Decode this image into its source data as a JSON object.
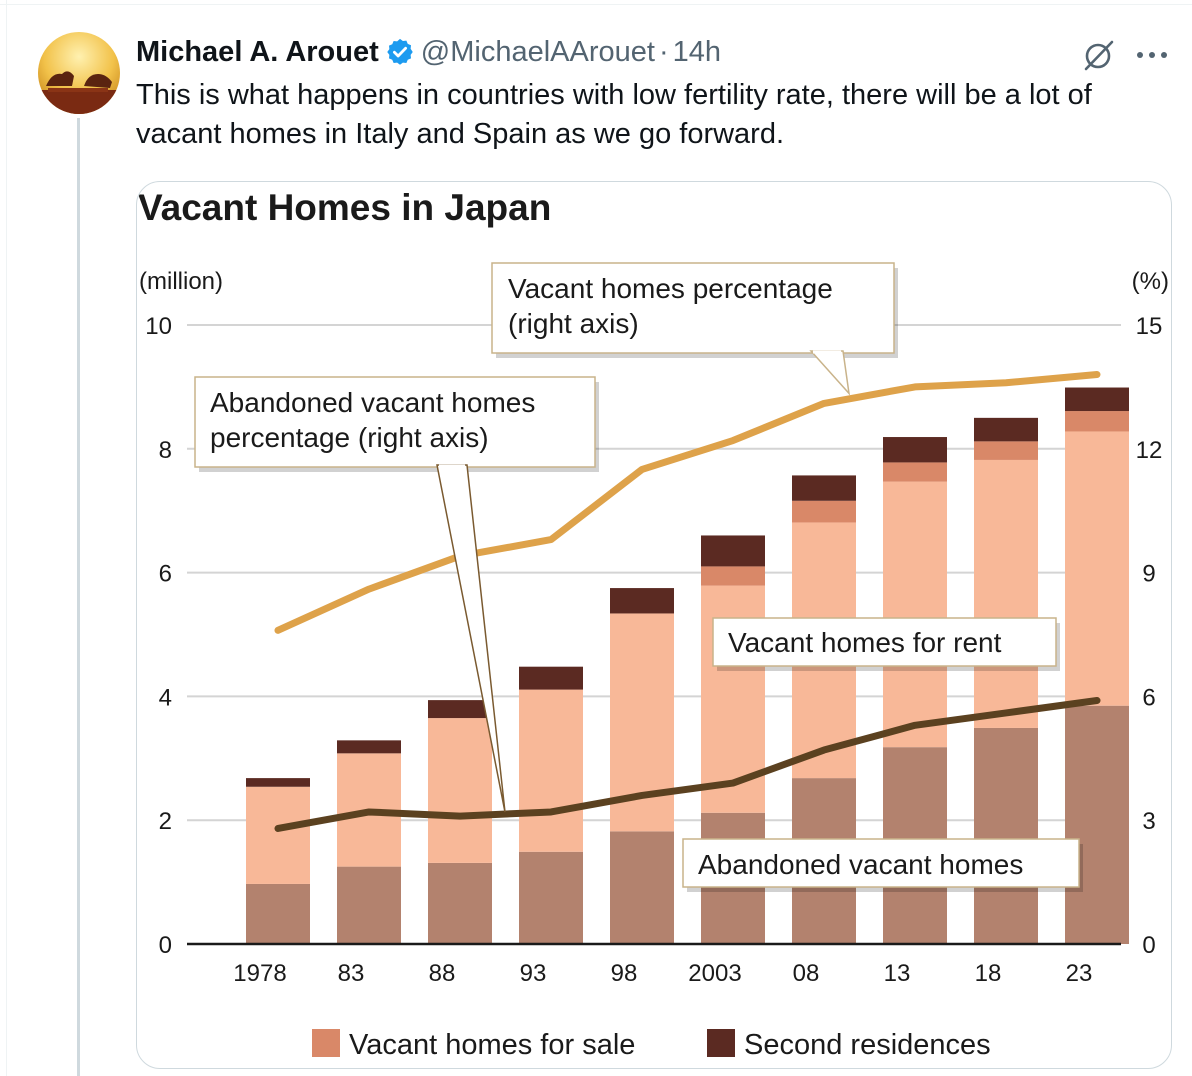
{
  "post": {
    "author_name": "Michael A. Arouet",
    "handle": "@MichaelAArouet",
    "separator": "·",
    "time": "14h",
    "text_lines": [
      "This is what happens in countries with low fertility rate, there will be a lot of",
      "vacant homes in Italy and Spain as we go forward."
    ],
    "icons": [
      "verified-badge-icon",
      "grok-icon",
      "more-icon"
    ]
  },
  "chart_data": {
    "type": "bar",
    "title": "Vacant Homes in Japan",
    "left_axis_label": "(million)",
    "right_axis_label": "(%)",
    "left_ylim": [
      0,
      10
    ],
    "right_ylim": [
      0,
      15
    ],
    "left_ticks": [
      "0",
      "2",
      "4",
      "6",
      "8",
      "10"
    ],
    "right_ticks": [
      "0",
      "3",
      "6",
      "9",
      "12",
      "15"
    ],
    "categories": [
      "1978",
      "83",
      "88",
      "93",
      "98",
      "2003",
      "08",
      "13",
      "18",
      "23"
    ],
    "stack_series": [
      {
        "key": "abandoned",
        "color": "#b3826e",
        "values": [
          0.97,
          1.25,
          1.31,
          1.49,
          1.82,
          2.12,
          2.68,
          3.18,
          3.49,
          3.85
        ]
      },
      {
        "key": "rent",
        "color": "#f8b898",
        "values": [
          1.57,
          1.83,
          2.34,
          2.62,
          3.52,
          3.67,
          4.13,
          4.29,
          4.33,
          4.43
        ]
      },
      {
        "key": "sale",
        "color": "#d98868",
        "values": [
          0,
          0,
          0,
          0,
          0,
          0.31,
          0.35,
          0.31,
          0.3,
          0.33
        ]
      },
      {
        "key": "second",
        "color": "#5b2a22",
        "values": [
          0.14,
          0.21,
          0.29,
          0.37,
          0.41,
          0.5,
          0.41,
          0.41,
          0.38,
          0.38
        ]
      }
    ],
    "line_series": [
      {
        "key": "vacant_pct",
        "color": "#dea24a",
        "axis": "right",
        "values": [
          7.6,
          8.6,
          9.4,
          9.8,
          11.5,
          12.2,
          13.1,
          13.5,
          13.6,
          13.8
        ]
      },
      {
        "key": "abandoned_pct",
        "color": "#5b4120",
        "axis": "right",
        "values": [
          2.8,
          3.2,
          3.1,
          3.2,
          3.6,
          3.9,
          4.7,
          5.3,
          5.6,
          5.9
        ]
      }
    ],
    "callouts": {
      "vacant_pct": [
        "Vacant homes percentage",
        "(right axis)"
      ],
      "abandoned_pct": [
        "Abandoned vacant homes",
        "percentage (right axis)"
      ],
      "rent": "Vacant homes for rent",
      "abandoned": "Abandoned vacant homes"
    },
    "legend": [
      {
        "label": "Vacant homes for sale",
        "color": "#d98868"
      },
      {
        "label": "Second residences",
        "color": "#5b2a22"
      }
    ],
    "grid": true
  }
}
